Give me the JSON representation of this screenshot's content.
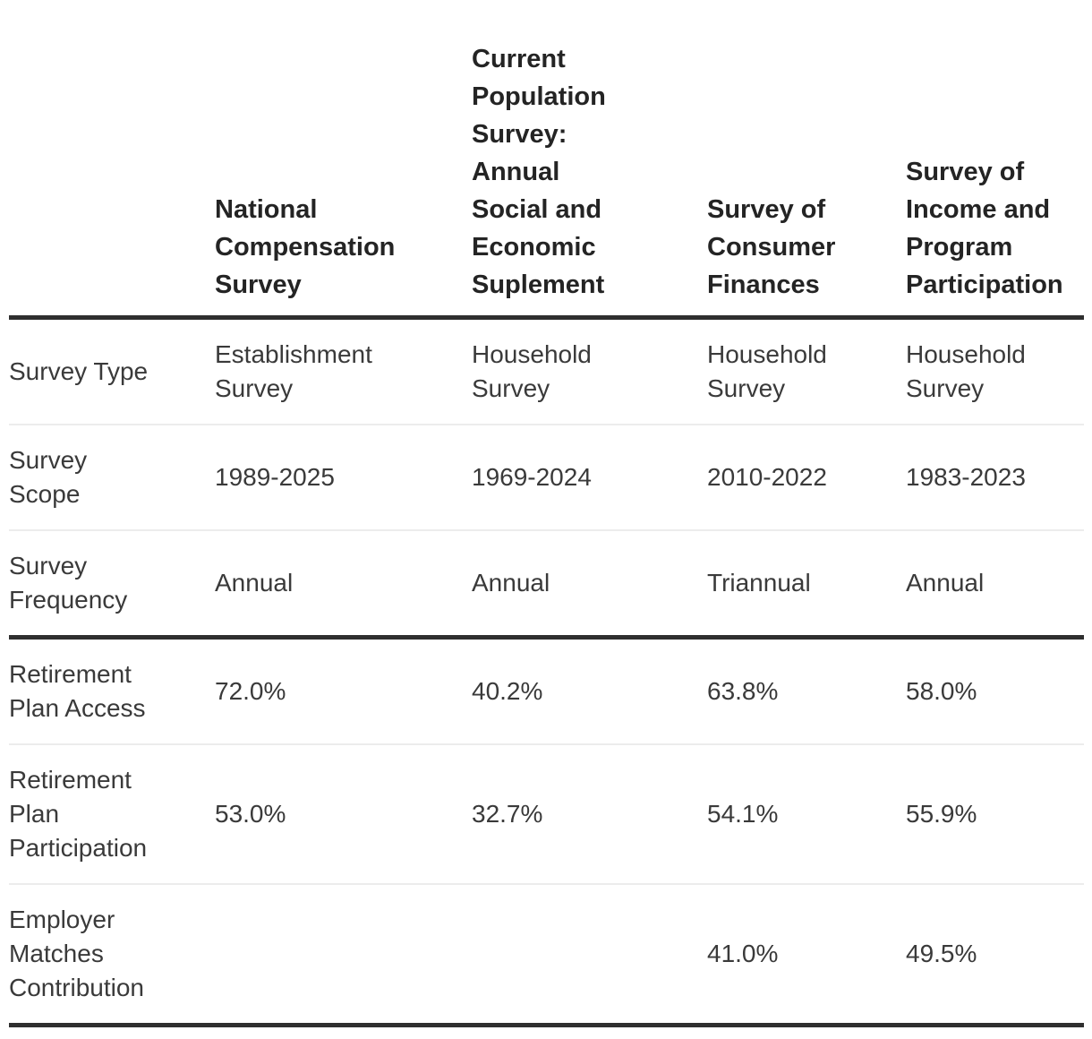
{
  "colors": {
    "background": "#ffffff",
    "header_text": "#242424",
    "body_text": "#3a3a3a",
    "thick_rule": "#2f2f2f",
    "thin_rule": "#ececec"
  },
  "table": {
    "header": {
      "corner": "",
      "columns": [
        "National\nCompensation\nSurvey",
        "Current\nPopulation\nSurvey:\nAnnual\nSocial and\nEconomic\nSuplement",
        "Survey of\nConsumer\nFinances",
        "Survey of\nIncome and\nProgram\nParticipation"
      ]
    },
    "rows": [
      {
        "label": "Survey Type",
        "cells": [
          "Establishment\nSurvey",
          "Household\nSurvey",
          "Household\nSurvey",
          "Household\nSurvey"
        ]
      },
      {
        "label": "Survey\nScope",
        "cells": [
          "1989-2025",
          "1969-2024",
          "2010-2022",
          "1983-2023"
        ]
      },
      {
        "label": "Survey\nFrequency",
        "cells": [
          "Annual",
          "Annual",
          "Triannual",
          "Annual"
        ]
      },
      {
        "label": "Retirement\nPlan Access",
        "cells": [
          "72.0%",
          "40.2%",
          "63.8%",
          "58.0%"
        ]
      },
      {
        "label": "Retirement\nPlan\nParticipation",
        "cells": [
          "53.0%",
          "32.7%",
          "54.1%",
          "55.9%"
        ]
      },
      {
        "label": "Employer\nMatches\nContribution",
        "cells": [
          "",
          "",
          "41.0%",
          "49.5%"
        ]
      }
    ]
  },
  "chart_data": {
    "type": "table",
    "columns": [
      "",
      "National Compensation Survey",
      "Current Population Survey: Annual Social and Economic Suplement",
      "Survey of Consumer Finances",
      "Survey of Income and Program Participation"
    ],
    "rows": [
      [
        "Survey Type",
        "Establishment Survey",
        "Household Survey",
        "Household Survey",
        "Household Survey"
      ],
      [
        "Survey Scope",
        "1989-2025",
        "1969-2024",
        "2010-2022",
        "1983-2023"
      ],
      [
        "Survey Frequency",
        "Annual",
        "Annual",
        "Triannual",
        "Annual"
      ],
      [
        "Retirement Plan Access",
        "72.0%",
        "40.2%",
        "63.8%",
        "58.0%"
      ],
      [
        "Retirement Plan Participation",
        "53.0%",
        "32.7%",
        "54.1%",
        "55.9%"
      ],
      [
        "Employer Matches Contribution",
        "",
        "",
        "41.0%",
        "49.5%"
      ]
    ]
  }
}
